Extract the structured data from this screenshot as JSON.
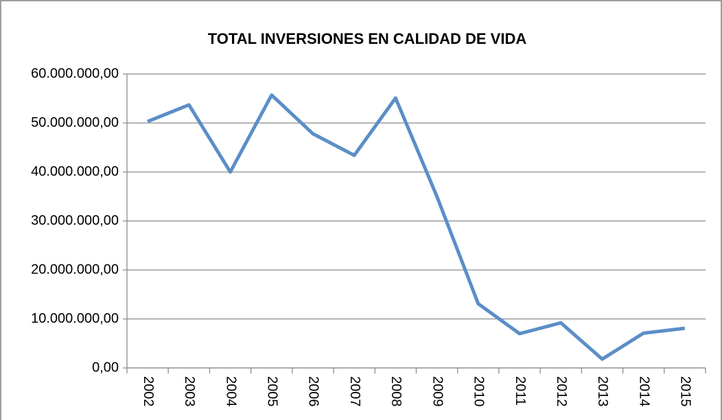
{
  "chart_data": {
    "type": "line",
    "title": "TOTAL INVERSIONES EN CALIDAD DE VIDA",
    "categories": [
      "2002",
      "2003",
      "2004",
      "2005",
      "2006",
      "2007",
      "2008",
      "2009",
      "2010",
      "2011",
      "2012",
      "2013",
      "2014",
      "2015"
    ],
    "values": [
      50300000,
      53700000,
      40000000,
      55700000,
      47800000,
      43400000,
      55100000,
      35000000,
      13100000,
      7000000,
      9200000,
      1800000,
      7100000,
      8100000
    ],
    "color": "#5b8ec7",
    "ylim": [
      0,
      60000000
    ],
    "yticks": [
      {
        "value": 0,
        "label": "0,00"
      },
      {
        "value": 10000000,
        "label": "10.000.000,00"
      },
      {
        "value": 20000000,
        "label": "20.000.000,00"
      },
      {
        "value": 30000000,
        "label": "30.000.000,00"
      },
      {
        "value": 40000000,
        "label": "40.000.000,00"
      },
      {
        "value": 50000000,
        "label": "50.000.000,00"
      },
      {
        "value": 60000000,
        "label": "60.000.000,00"
      }
    ],
    "grid": true
  }
}
